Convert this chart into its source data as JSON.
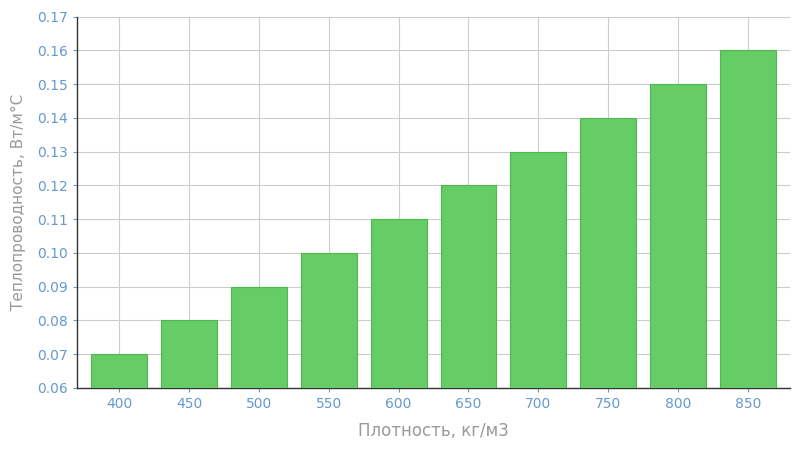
{
  "categories": [
    400,
    450,
    500,
    550,
    600,
    650,
    700,
    750,
    800,
    850
  ],
  "values": [
    0.07,
    0.08,
    0.09,
    0.1,
    0.11,
    0.12,
    0.13,
    0.14,
    0.15,
    0.16
  ],
  "bar_color": "#66cc66",
  "bar_edge_color": "#4db84d",
  "xlabel": "Плотность, кг/м3",
  "ylabel": "Теплопроводность, Вт/м°С",
  "ylim": [
    0.06,
    0.17
  ],
  "yticks": [
    0.06,
    0.07,
    0.08,
    0.09,
    0.1,
    0.11,
    0.12,
    0.13,
    0.14,
    0.15,
    0.16,
    0.17
  ],
  "background_color": "#ffffff",
  "grid_color": "#cccccc",
  "xlabel_fontsize": 12,
  "ylabel_fontsize": 11,
  "tick_fontsize": 10,
  "tick_color": "#6699cc",
  "label_color": "#999999",
  "spine_color": "#333333"
}
